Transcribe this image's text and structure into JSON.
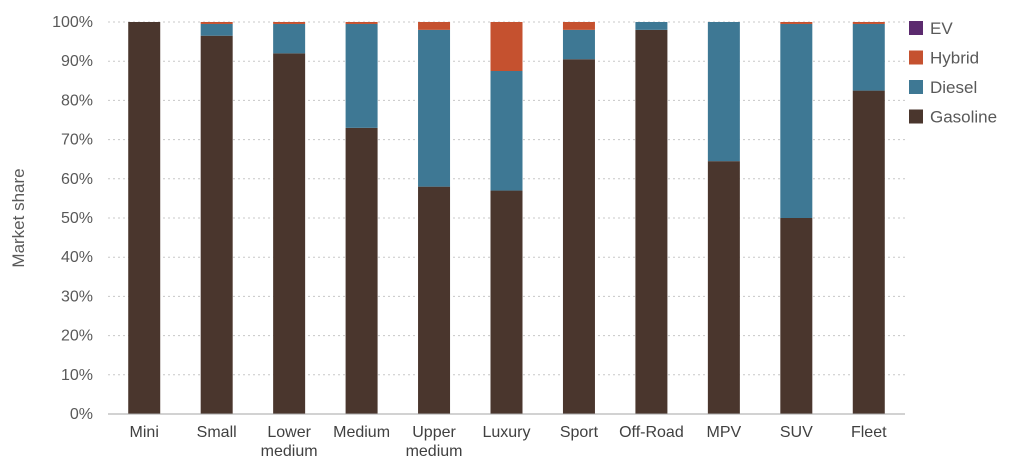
{
  "chart_data": {
    "type": "bar",
    "stacked": true,
    "categories": [
      "Mini",
      "Small",
      "Lower medium",
      "Medium",
      "Upper medium",
      "Luxury",
      "Sport",
      "Off-Road",
      "MPV",
      "SUV",
      "Fleet"
    ],
    "category_lines": [
      [
        "Mini"
      ],
      [
        "Small"
      ],
      [
        "Lower",
        "medium"
      ],
      [
        "Medium"
      ],
      [
        "Upper",
        "medium"
      ],
      [
        "Luxury"
      ],
      [
        "Sport"
      ],
      [
        "Off-Road"
      ],
      [
        "MPV"
      ],
      [
        "SUV"
      ],
      [
        "Fleet"
      ]
    ],
    "series": [
      {
        "name": "Gasoline",
        "color": "#4a362d",
        "values": [
          100,
          96.5,
          92,
          73,
          58,
          57,
          90.5,
          98,
          64.5,
          50,
          82.5
        ]
      },
      {
        "name": "Diesel",
        "color": "#3e7894",
        "values": [
          0,
          3,
          7.5,
          26.5,
          40,
          30.5,
          7.5,
          2,
          35.5,
          49.5,
          17
        ]
      },
      {
        "name": "Hybrid",
        "color": "#c5512f",
        "values": [
          0,
          0.5,
          0.5,
          0.5,
          2,
          12.5,
          2,
          0,
          0,
          0.5,
          0.5
        ]
      },
      {
        "name": "EV",
        "color": "#5b2a6e",
        "values": [
          0,
          0,
          0,
          0,
          0,
          0,
          0,
          0,
          0,
          0,
          0
        ]
      }
    ],
    "legend_order": [
      "EV",
      "Hybrid",
      "Diesel",
      "Gasoline"
    ],
    "legend_position": "right",
    "ylabel": "Market share",
    "xlabel": "",
    "title": "",
    "ylim": [
      0,
      100
    ],
    "yticks": [
      0,
      10,
      20,
      30,
      40,
      50,
      60,
      70,
      80,
      90,
      100
    ],
    "ytick_labels": [
      "0%",
      "10%",
      "20%",
      "30%",
      "40%",
      "50%",
      "60%",
      "70%",
      "80%",
      "90%",
      "100%"
    ],
    "grid": true
  }
}
